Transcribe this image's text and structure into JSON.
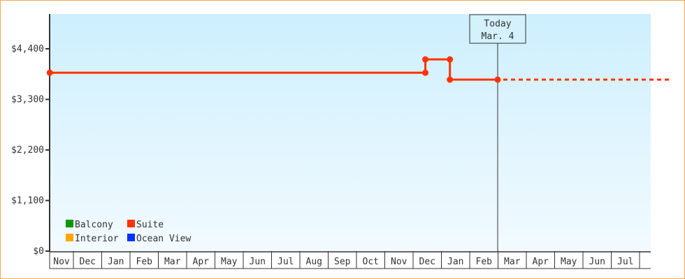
{
  "chart_data": {
    "type": "line",
    "title": "",
    "xlabel": "",
    "ylabel": "",
    "ylim": [
      0,
      5186
    ],
    "yticks": [
      0,
      1100,
      2200,
      3300,
      4400
    ],
    "ytick_labels": [
      "$0",
      "$1,100",
      "$2,200",
      "$3,300",
      "$4,400"
    ],
    "categories": [
      "Nov",
      "Dec",
      "Jan",
      "Feb",
      "Mar",
      "Apr",
      "May",
      "Jun",
      "Jul",
      "Aug",
      "Sep",
      "Oct",
      "Nov",
      "Dec",
      "Jan",
      "Feb",
      "Mar",
      "Apr",
      "May",
      "Jun",
      "Jul"
    ],
    "grid": false,
    "legend_position": "bottom-left",
    "legend": [
      {
        "name": "Balcony",
        "color": "#009900"
      },
      {
        "name": "Suite",
        "color": "#ff3300"
      },
      {
        "name": "Interior",
        "color": "#ffa500"
      },
      {
        "name": "Ocean View",
        "color": "#0033ff"
      }
    ],
    "series": [
      {
        "name": "Suite",
        "color": "#ff3300",
        "points": [
          {
            "month_index": 0,
            "day": 6,
            "price": 3880
          },
          {
            "month_index": 13,
            "day": 14,
            "price": 3880
          },
          {
            "month_index": 13,
            "day": 14,
            "price": 4170
          },
          {
            "month_index": 14,
            "day": 10,
            "price": 4170
          },
          {
            "month_index": 14,
            "day": 10,
            "price": 3730
          },
          {
            "month_index": 16,
            "day": 4,
            "price": 3730
          }
        ],
        "projection": {
          "price": 3730,
          "style": "dashed"
        }
      }
    ],
    "today_marker": {
      "line1": "Today",
      "line2": "Mar. 4",
      "month_index": 16,
      "day": 4
    },
    "background_gradient": [
      "#cdeffd",
      "#f2faff"
    ]
  }
}
